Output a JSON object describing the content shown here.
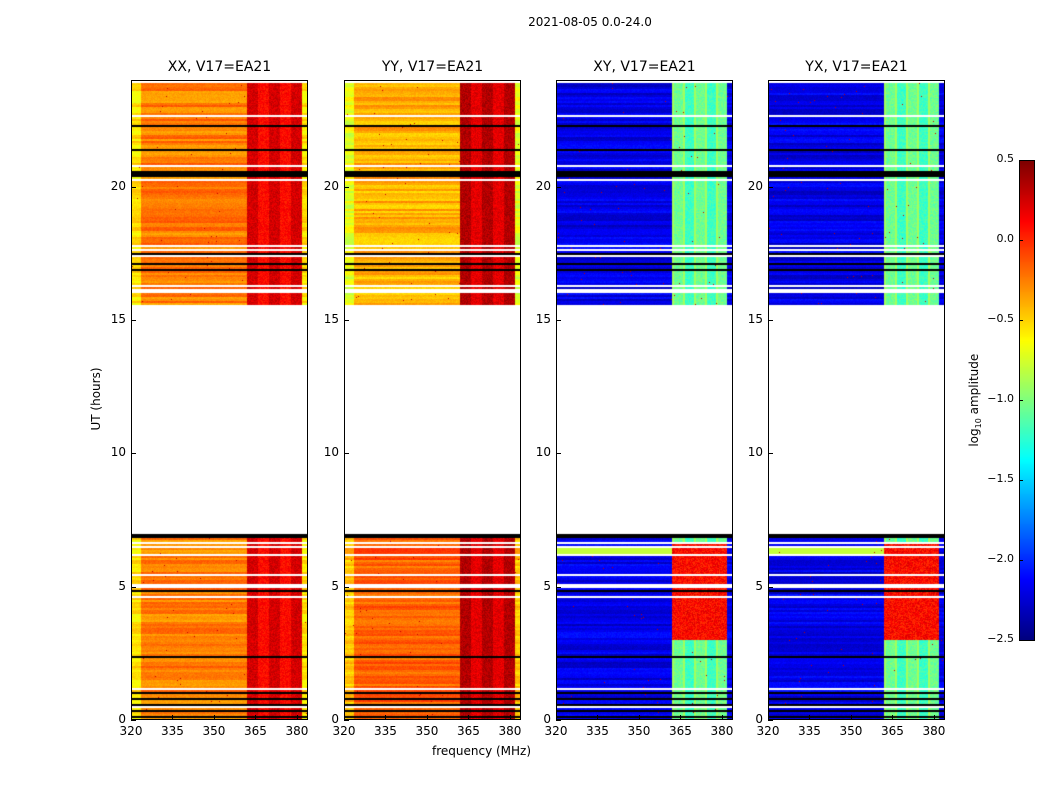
{
  "chart_data": {
    "type": "heatmap",
    "title": "2021-08-05 0.0-24.0",
    "xlabel": "frequency (MHz)",
    "ylabel": "UT (hours)",
    "xlim": [
      320,
      384
    ],
    "ylim": [
      0,
      24
    ],
    "xticks": [
      320,
      335,
      350,
      365,
      380
    ],
    "yticks": [
      0,
      5,
      10,
      15,
      20
    ],
    "data_gap_hours": [
      7.0,
      15.6
    ],
    "rfi_band_mhz": [
      362,
      382
    ],
    "panels": [
      {
        "title": "XX, V17=EA21",
        "base_level": -0.25,
        "band_level": 0.1,
        "show_ylabel": true
      },
      {
        "title": "YY, V17=EA21",
        "base_level": -0.4,
        "band_level": 0.2,
        "show_ylabel": false
      },
      {
        "title": "XY, V17=EA21",
        "base_level": -2.2,
        "band_level": -1.2,
        "show_ylabel": false
      },
      {
        "title": "YX, V17=EA21",
        "base_level": -2.2,
        "band_level": -1.2,
        "show_ylabel": false
      }
    ],
    "colorbar": {
      "label_prefix": "log",
      "label_sub": "10",
      "label_suffix": " amplitude",
      "range": [
        -2.5,
        0.5
      ],
      "ticks": [
        "0.5",
        "0.0",
        "−0.5",
        "−1.0",
        "−1.5",
        "−2.0",
        "−2.5"
      ],
      "tick_values": [
        0.5,
        0.0,
        -0.5,
        -1.0,
        -1.5,
        -2.0,
        -2.5
      ],
      "colormap": "jet"
    }
  }
}
